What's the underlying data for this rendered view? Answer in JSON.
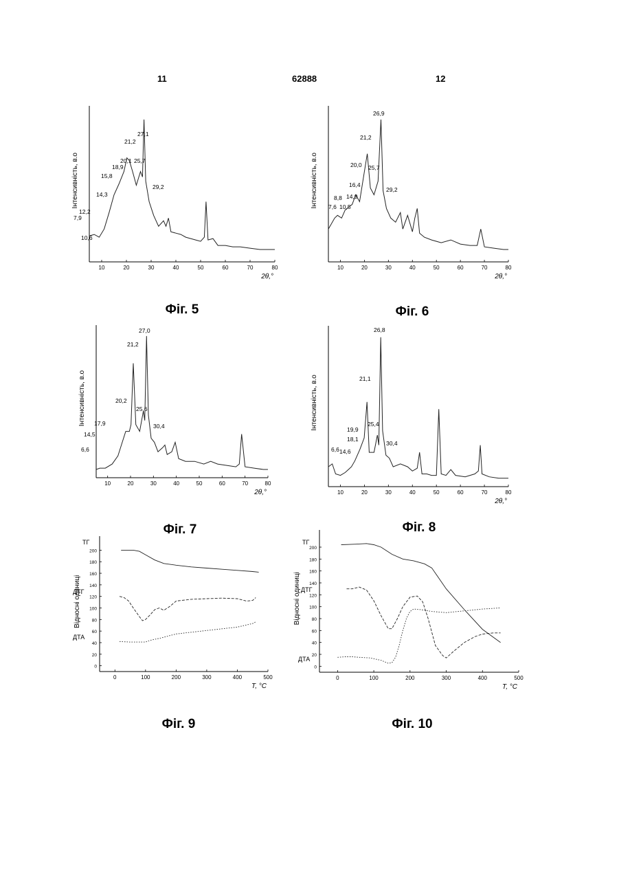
{
  "header": {
    "left": "11",
    "center": "62888",
    "right": "12"
  },
  "figures": [
    {
      "caption": "Фіг.  5"
    },
    {
      "caption": "Фіг. 6"
    },
    {
      "caption": "Фіг. 7"
    },
    {
      "caption": "Фіг. 8"
    },
    {
      "caption": "Фіг. 9"
    },
    {
      "caption": "Фіг. 10"
    }
  ],
  "chart_data": [
    {
      "id": "fig5",
      "type": "line",
      "xlabel": "2θ,°",
      "ylabel": "Інтенсивність, в.о",
      "xlim": [
        5,
        80
      ],
      "xticks": [
        "10",
        "20",
        "30",
        "40",
        "50",
        "60",
        "70",
        "80"
      ],
      "series": [
        {
          "x": [
            5,
            7,
            9,
            11,
            13,
            15,
            17,
            19,
            20.2,
            21.2,
            22.5,
            24,
            25.7,
            26.5,
            27.1,
            27.8,
            29.2,
            31,
            33,
            35,
            36,
            37,
            38,
            40,
            42,
            44,
            46,
            48,
            50,
            51.5,
            52.2,
            53,
            55,
            57,
            60,
            63,
            66,
            70,
            74,
            78,
            80
          ],
          "y": [
            0.15,
            0.16,
            0.14,
            0.2,
            0.32,
            0.45,
            0.53,
            0.62,
            0.72,
            0.7,
            0.62,
            0.52,
            0.62,
            0.58,
            1.0,
            0.55,
            0.4,
            0.3,
            0.22,
            0.26,
            0.22,
            0.28,
            0.18,
            0.17,
            0.16,
            0.14,
            0.13,
            0.12,
            0.11,
            0.14,
            0.4,
            0.12,
            0.13,
            0.08,
            0.08,
            0.07,
            0.07,
            0.06,
            0.05,
            0.05,
            0.05
          ]
        }
      ],
      "peaks": [
        "7,9",
        "12,2",
        "10,6",
        "14,3",
        "15,8",
        "18,9",
        "20,1",
        "21,2",
        "25,7",
        "27,1",
        "29,2"
      ]
    },
    {
      "id": "fig6",
      "type": "line",
      "xlabel": "2θ,°",
      "ylabel": "Інтенсивність, в.о",
      "xlim": [
        5,
        80
      ],
      "xticks": [
        "10",
        "20",
        "30",
        "40",
        "50",
        "60",
        "70",
        "80"
      ],
      "series": [
        {
          "x": [
            5,
            7.6,
            8.8,
            10.5,
            12,
            14.9,
            16.4,
            18,
            20,
            21.2,
            22.5,
            24,
            25.7,
            26.9,
            27.8,
            29.2,
            31,
            33,
            35,
            36,
            38,
            40,
            41,
            42,
            43,
            45,
            48,
            52,
            56,
            60,
            64,
            67,
            68.5,
            70,
            74,
            78,
            80
          ],
          "y": [
            0.2,
            0.28,
            0.3,
            0.28,
            0.34,
            0.38,
            0.45,
            0.4,
            0.62,
            0.75,
            0.5,
            0.45,
            0.55,
            1.0,
            0.48,
            0.35,
            0.28,
            0.25,
            0.32,
            0.2,
            0.3,
            0.18,
            0.28,
            0.35,
            0.17,
            0.14,
            0.12,
            0.1,
            0.12,
            0.09,
            0.08,
            0.08,
            0.2,
            0.07,
            0.06,
            0.05,
            0.05
          ]
        }
      ],
      "peaks": [
        "7,6",
        "8,8",
        "10,5",
        "14,9",
        "16,4",
        "20,0",
        "21,2",
        "25,7",
        "26,9",
        "29,2"
      ]
    },
    {
      "id": "fig7",
      "type": "line",
      "xlabel": "2θ,°",
      "ylabel": "Інтенсивність, в.о",
      "xlim": [
        5,
        80
      ],
      "xticks": [
        "10",
        "20",
        "30",
        "40",
        "50",
        "60",
        "70",
        "80"
      ],
      "series": [
        {
          "x": [
            5,
            6.6,
            9,
            12,
            14.5,
            16,
            17.9,
            19.5,
            20.2,
            21.2,
            22.3,
            24,
            25.6,
            26.2,
            27.0,
            27.8,
            29,
            30.4,
            32,
            34,
            35,
            36,
            38,
            39.5,
            41,
            44,
            48,
            52,
            55,
            58,
            62,
            66,
            67.5,
            68.5,
            70,
            74,
            78,
            80
          ],
          "y": [
            0.02,
            0.03,
            0.03,
            0.06,
            0.12,
            0.2,
            0.3,
            0.3,
            0.35,
            0.8,
            0.35,
            0.3,
            0.45,
            0.38,
            1.0,
            0.42,
            0.25,
            0.22,
            0.15,
            0.18,
            0.2,
            0.13,
            0.15,
            0.22,
            0.1,
            0.08,
            0.08,
            0.06,
            0.08,
            0.06,
            0.05,
            0.04,
            0.06,
            0.28,
            0.04,
            0.03,
            0.02,
            0.02
          ]
        }
      ],
      "peaks": [
        "6,6",
        "14,5",
        "17,9",
        "20,2",
        "21,2",
        "25,6",
        "27,0",
        "30,4"
      ]
    },
    {
      "id": "fig8",
      "type": "line",
      "xlabel": "2θ,°",
      "ylabel": "Інтенсивність, в.о",
      "xlim": [
        5,
        80
      ],
      "xticks": [
        "10",
        "20",
        "30",
        "40",
        "50",
        "60",
        "70",
        "80"
      ],
      "series": [
        {
          "x": [
            5,
            6.6,
            8,
            10,
            12,
            14.6,
            16,
            18.1,
            19.9,
            21.1,
            22,
            24,
            25.4,
            26,
            26.8,
            27.6,
            29,
            30.4,
            32,
            35,
            38,
            40,
            42,
            43,
            44,
            46,
            48,
            50,
            51,
            52,
            54,
            56,
            58,
            62,
            66,
            67.5,
            68.3,
            69,
            72,
            76,
            80
          ],
          "y": [
            0.1,
            0.12,
            0.05,
            0.04,
            0.06,
            0.1,
            0.14,
            0.22,
            0.3,
            0.55,
            0.2,
            0.2,
            0.32,
            0.25,
            1.0,
            0.35,
            0.18,
            0.16,
            0.1,
            0.12,
            0.1,
            0.07,
            0.09,
            0.2,
            0.05,
            0.05,
            0.04,
            0.04,
            0.5,
            0.05,
            0.04,
            0.08,
            0.04,
            0.03,
            0.05,
            0.07,
            0.25,
            0.05,
            0.03,
            0.02,
            0.02
          ]
        }
      ],
      "peaks": [
        "6,6",
        "14,6",
        "18,1",
        "19,9",
        "21,1",
        "25,4",
        "26,8",
        "30,4"
      ]
    },
    {
      "id": "fig9",
      "type": "line",
      "xlabel": "T, °C",
      "ylabel": "Відносні одиниці",
      "xlim": [
        -50,
        500
      ],
      "ylim": [
        -10,
        210
      ],
      "xticks": [
        "0",
        "100",
        "200",
        "300",
        "400",
        "500"
      ],
      "yticks": [
        "0",
        "20",
        "40",
        "60",
        "80",
        "100",
        "120",
        "140",
        "160",
        "180",
        "200"
      ],
      "series": [
        {
          "name": "ТГ",
          "x": [
            20,
            60,
            80,
            100,
            130,
            160,
            200,
            250,
            300,
            350,
            400,
            450,
            470
          ],
          "y": [
            200,
            200,
            198,
            192,
            183,
            177,
            174,
            171,
            169,
            167,
            165,
            163,
            162
          ]
        },
        {
          "name": "ДТГ",
          "x": [
            15,
            30,
            45,
            60,
            80,
            90,
            100,
            115,
            130,
            145,
            160,
            180,
            200,
            250,
            300,
            350,
            400,
            430,
            450,
            460
          ],
          "y": [
            120,
            118,
            112,
            100,
            85,
            78,
            80,
            88,
            97,
            100,
            96,
            103,
            112,
            115,
            116,
            117,
            116,
            112,
            113,
            118
          ]
        },
        {
          "name": "ДТА",
          "x": [
            15,
            50,
            80,
            100,
            115,
            150,
            200,
            250,
            300,
            350,
            400,
            450,
            460
          ],
          "y": [
            42,
            41,
            41,
            41,
            44,
            48,
            55,
            58,
            61,
            64,
            67,
            73,
            76
          ]
        }
      ]
    },
    {
      "id": "fig10",
      "type": "line",
      "xlabel": "T, °C",
      "ylabel": "Відносні одиниці",
      "xlim": [
        -50,
        500
      ],
      "ylim": [
        -10,
        215
      ],
      "xticks": [
        "0",
        "100",
        "200",
        "300",
        "400",
        "500"
      ],
      "yticks": [
        "0",
        "20",
        "40",
        "60",
        "80",
        "100",
        "120",
        "140",
        "160",
        "180",
        "200"
      ],
      "series": [
        {
          "name": "ТГ",
          "x": [
            10,
            50,
            80,
            100,
            120,
            150,
            180,
            210,
            240,
            260,
            300,
            350,
            400,
            450
          ],
          "y": [
            204,
            205,
            206,
            204,
            200,
            188,
            180,
            177,
            172,
            165,
            130,
            95,
            62,
            40
          ]
        },
        {
          "name": "ДТГ",
          "x": [
            25,
            40,
            60,
            80,
            100,
            120,
            140,
            150,
            165,
            180,
            200,
            220,
            235,
            250,
            270,
            290,
            300,
            320,
            350,
            380,
            400,
            430,
            450
          ],
          "y": [
            130,
            130,
            133,
            128,
            110,
            85,
            63,
            63,
            80,
            100,
            116,
            118,
            108,
            80,
            35,
            18,
            14,
            25,
            40,
            50,
            54,
            56,
            56
          ]
        },
        {
          "name": "ДТА",
          "x": [
            0,
            20,
            40,
            60,
            90,
            120,
            140,
            150,
            160,
            170,
            180,
            190,
            200,
            210,
            230,
            260,
            300,
            350,
            400,
            450
          ],
          "y": [
            15,
            16,
            16,
            15,
            14,
            10,
            5,
            6,
            15,
            35,
            60,
            80,
            92,
            96,
            95,
            92,
            90,
            93,
            96,
            98
          ]
        }
      ]
    }
  ]
}
